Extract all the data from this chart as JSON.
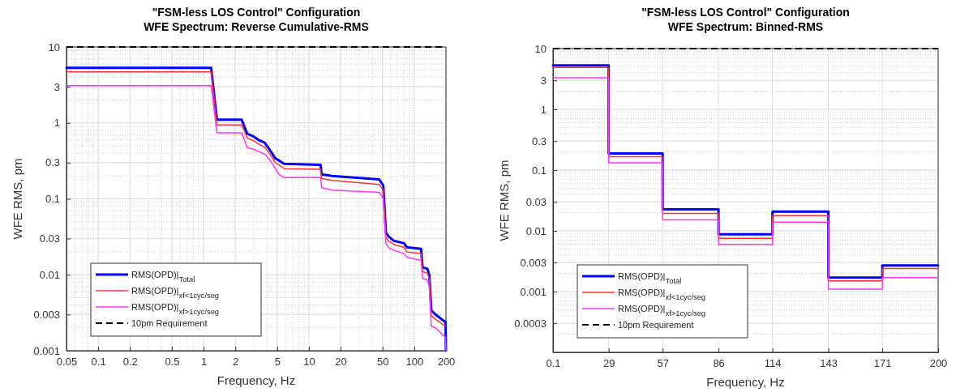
{
  "chart_data": [
    {
      "type": "line",
      "title": "\"FSM-less LOS Control\" Configuration",
      "subtitle": "WFE Spectrum: Reverse Cumulative-RMS",
      "xlabel": "Frequency, Hz",
      "ylabel": "WFE RMS, pm",
      "log": "xy",
      "grid": true,
      "legend": "bottom left",
      "x": [
        0.05,
        1.18,
        1.34,
        2.3,
        2.6,
        3.0,
        3.3,
        3.8,
        4.3,
        4.8,
        5.2,
        5.8,
        12.9,
        13.2,
        16.6,
        46.5,
        50.8,
        53.8,
        57,
        64,
        80,
        85,
        116,
        120,
        133,
        139,
        145,
        159,
        188,
        198,
        200
      ],
      "series": [
        {
          "name": "RMS(OPD)|$_{Total}$",
          "color": "#0000ff",
          "values": [
            5.3,
            5.3,
            1.1,
            1.1,
            0.72,
            0.66,
            0.6,
            0.55,
            0.43,
            0.34,
            0.32,
            0.29,
            0.28,
            0.21,
            0.2,
            0.18,
            0.15,
            0.036,
            0.032,
            0.028,
            0.026,
            0.023,
            0.022,
            0.0125,
            0.012,
            0.0099,
            0.0034,
            0.003,
            0.0025,
            0.0024,
            0.001
          ]
        },
        {
          "name": "RMS(OPD)|$_{xf<1cyc/seg}$",
          "color": "#ff3333",
          "values": [
            4.7,
            4.7,
            0.94,
            0.94,
            0.63,
            0.58,
            0.53,
            0.48,
            0.38,
            0.3,
            0.28,
            0.25,
            0.245,
            0.185,
            0.175,
            0.155,
            0.13,
            0.031,
            0.028,
            0.025,
            0.023,
            0.02,
            0.019,
            0.011,
            0.0105,
            0.0088,
            0.0029,
            0.0026,
            0.0022,
            0.0021,
            null
          ]
        },
        {
          "name": "RMS(OPD)|$_{xf>1cyc/seg}$",
          "color": "#ff33ff",
          "values": [
            3.1,
            3.1,
            0.74,
            0.74,
            0.47,
            0.45,
            0.42,
            0.39,
            0.32,
            0.25,
            0.21,
            0.19,
            0.19,
            0.14,
            0.13,
            0.122,
            0.1,
            0.026,
            0.023,
            0.021,
            0.019,
            0.017,
            0.0155,
            0.009,
            0.0085,
            0.007,
            0.0021,
            0.002,
            0.0016,
            0.0015,
            0.001
          ]
        }
      ],
      "xlim": [
        0.05,
        200
      ],
      "xticks": [
        0.05,
        0.1,
        0.2,
        0.5,
        1,
        2,
        5,
        10,
        20,
        50,
        100,
        200
      ],
      "ylim": [
        0.001,
        10
      ],
      "yticks": [
        0.001,
        0.003,
        0.01,
        0.03,
        0.1,
        0.3,
        1,
        3,
        10
      ],
      "ref_lines": [
        {
          "axis": "y",
          "value": 10,
          "label": "10pm Requirement",
          "color": "#000000",
          "line_style": "dashed"
        }
      ]
    },
    {
      "type": "step",
      "title": "\"FSM-less LOS Control\" Configuration",
      "subtitle": "WFE Spectrum: Binned-RMS",
      "xlabel": "Frequency, Hz",
      "ylabel": "WFE RMS, pm",
      "log": "y",
      "grid": true,
      "legend": "bottom left",
      "x": [
        0.1,
        29,
        57,
        86,
        114,
        143,
        171,
        200
      ],
      "series": [
        {
          "name": "RMS(OPD)|$_{Total}$",
          "color": "#0000ff",
          "values": [
            5.3,
            0.188,
            0.0225,
            0.0088,
            0.0207,
            0.0017,
            0.0027,
            0.0027
          ]
        },
        {
          "name": "RMS(OPD)|$_{xf<1cyc/seg}$",
          "color": "#ff3333",
          "values": [
            4.9,
            0.166,
            0.0194,
            0.0075,
            0.0178,
            0.0015,
            0.0024,
            0.0024
          ]
        },
        {
          "name": "RMS(OPD)|$_{xf>1cyc/seg}$",
          "color": "#ff33ff",
          "values": [
            3.3,
            0.132,
            0.0151,
            0.006,
            0.0139,
            0.0011,
            0.0017,
            0.0017
          ]
        }
      ],
      "xlim": [
        0.1,
        200
      ],
      "xticks": [
        0.1,
        29,
        57,
        86,
        114,
        143,
        171,
        200
      ],
      "ylim": [
        0.0001,
        10
      ],
      "yticks": [
        {
          "value": 0.0001,
          "label": null
        },
        0.0003,
        0.001,
        0.003,
        0.01,
        0.03,
        0.1,
        0.3,
        1,
        3,
        10
      ],
      "ref_lines": [
        {
          "axis": "y",
          "value": 10,
          "label": "10pm Requirement",
          "color": "#000000",
          "line_style": "dashed"
        }
      ]
    }
  ]
}
